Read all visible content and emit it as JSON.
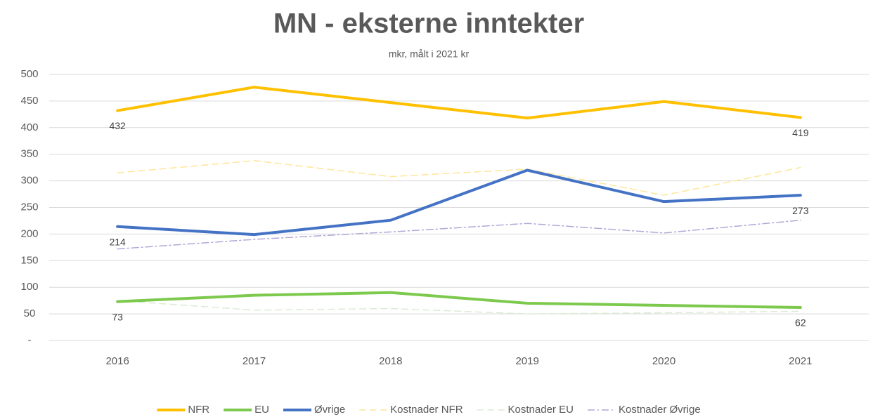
{
  "chart_data": {
    "type": "line",
    "title": "MN - eksterne inntekter",
    "subtitle": "mkr, målt i 2021 kr",
    "categories": [
      "2016",
      "2017",
      "2018",
      "2019",
      "2020",
      "2021"
    ],
    "series": [
      {
        "name": "NFR",
        "color": "#ffc000",
        "style": "solid",
        "values": [
          432,
          476,
          447,
          418,
          449,
          419
        ],
        "data_labels": "first-last"
      },
      {
        "name": "EU",
        "color": "#7dc94d",
        "style": "solid",
        "values": [
          73,
          85,
          90,
          70,
          66,
          62
        ],
        "data_labels": "first-last"
      },
      {
        "name": "Øvrige",
        "color": "#4472c4",
        "style": "solid",
        "values": [
          214,
          199,
          226,
          320,
          261,
          273
        ],
        "data_labels": "first-last"
      },
      {
        "name": "Kostnader NFR",
        "color": "#ffe699",
        "style": "dashed",
        "values": [
          315,
          338,
          308,
          322,
          273,
          325
        ]
      },
      {
        "name": "Kostnader EU",
        "color": "#dcebd3",
        "style": "dashed",
        "values": [
          75,
          57,
          60,
          50,
          52,
          55
        ]
      },
      {
        "name": "Kostnader Øvrige",
        "color": "#b4a7d6",
        "style": "dashdot",
        "values": [
          172,
          190,
          204,
          220,
          202,
          226
        ]
      }
    ],
    "ylim": [
      0,
      500
    ],
    "yticks": [
      {
        "value": 0,
        "label": "-"
      },
      50,
      100,
      150,
      200,
      250,
      300,
      350,
      400,
      450,
      500
    ],
    "grid": true,
    "legend": "bottom"
  }
}
